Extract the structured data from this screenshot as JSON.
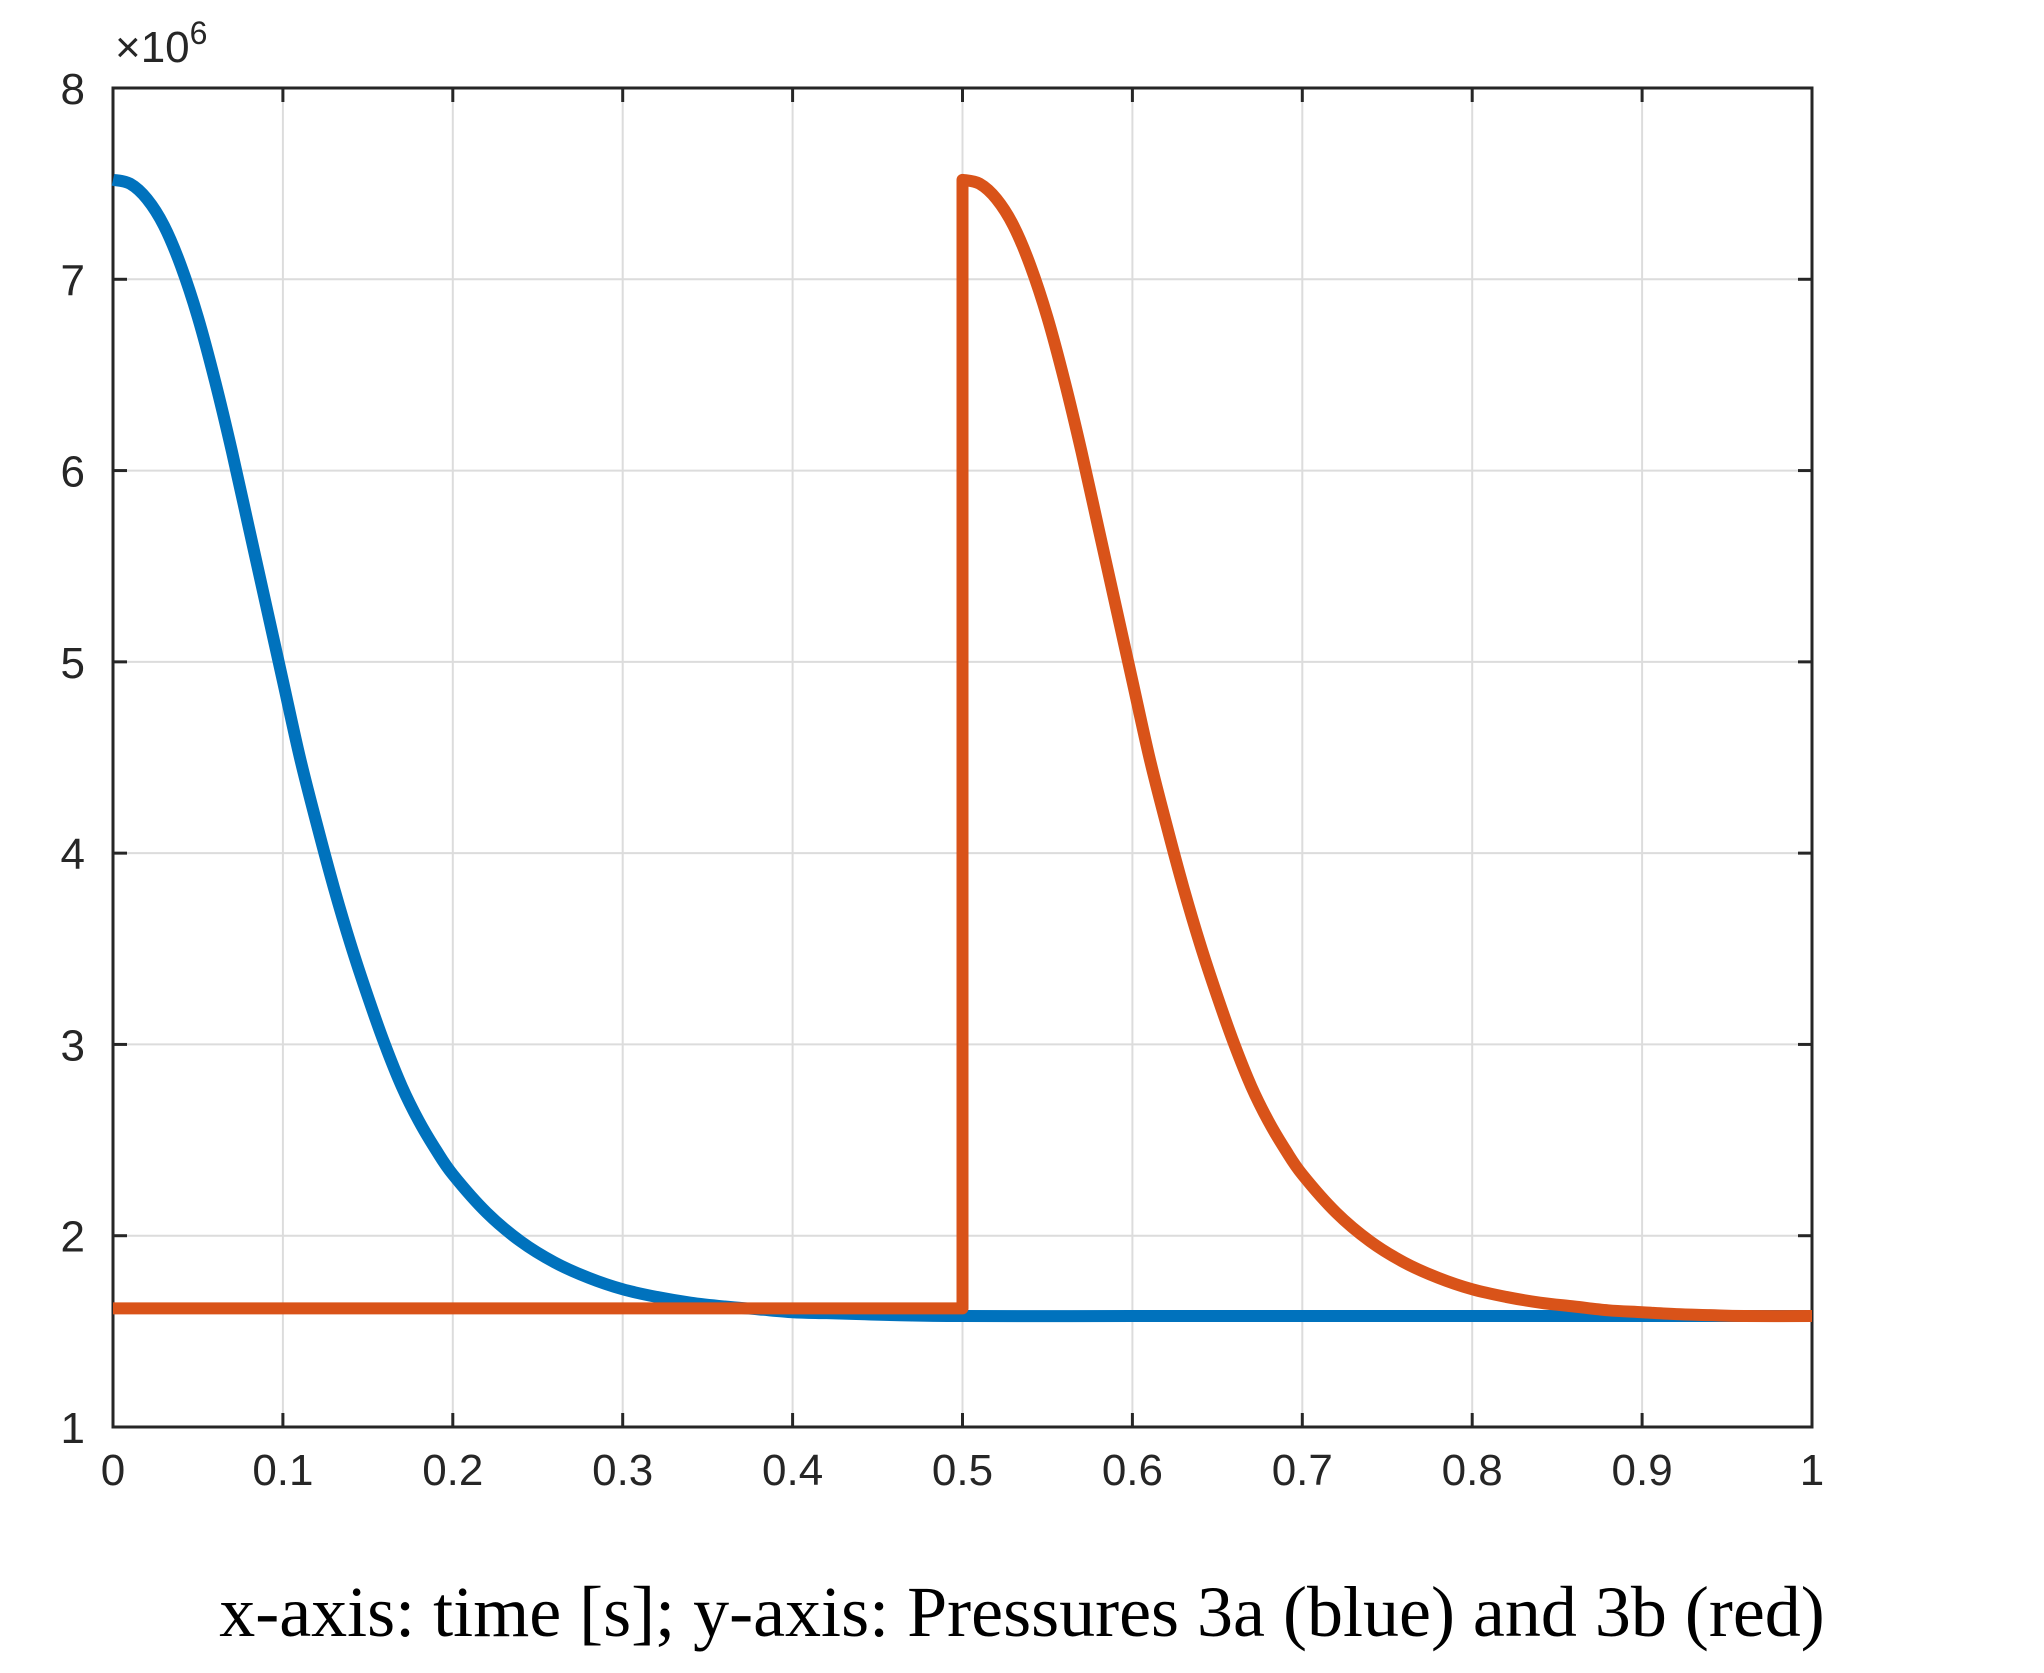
{
  "chart_data": {
    "type": "line",
    "title": "",
    "xlabel": "",
    "ylabel": "",
    "xlim": [
      0,
      1
    ],
    "ylim": [
      1,
      8
    ],
    "y_exponent_label": "×10",
    "y_exponent_power": "6",
    "grid": true,
    "x_ticks": [
      0,
      0.1,
      0.2,
      0.3,
      0.4,
      0.5,
      0.6,
      0.7,
      0.8,
      0.9,
      1
    ],
    "x_tick_labels": [
      "0",
      "0.1",
      "0.2",
      "0.3",
      "0.4",
      "0.5",
      "0.6",
      "0.7",
      "0.8",
      "0.9",
      "1"
    ],
    "y_ticks": [
      1,
      2,
      3,
      4,
      5,
      6,
      7,
      8
    ],
    "y_tick_labels": [
      "1",
      "2",
      "3",
      "4",
      "5",
      "6",
      "7",
      "8"
    ],
    "series": [
      {
        "name": "Pressure 3a",
        "color": "#0072BD",
        "x": [
          0,
          0.01,
          0.02,
          0.03,
          0.04,
          0.05,
          0.06,
          0.07,
          0.08,
          0.09,
          0.1,
          0.11,
          0.12,
          0.13,
          0.14,
          0.15,
          0.16,
          0.17,
          0.18,
          0.19,
          0.2,
          0.22,
          0.24,
          0.26,
          0.28,
          0.3,
          0.32,
          0.34,
          0.36,
          0.38,
          0.4,
          0.42,
          0.44,
          0.46,
          0.5,
          0.6,
          0.7,
          0.8,
          0.9,
          1.0
        ],
        "values": [
          7.52,
          7.5,
          7.42,
          7.28,
          7.07,
          6.8,
          6.47,
          6.1,
          5.7,
          5.3,
          4.9,
          4.5,
          4.15,
          3.82,
          3.52,
          3.25,
          3.0,
          2.78,
          2.6,
          2.45,
          2.32,
          2.12,
          1.97,
          1.86,
          1.78,
          1.72,
          1.68,
          1.65,
          1.63,
          1.615,
          1.6,
          1.595,
          1.59,
          1.585,
          1.58,
          1.58,
          1.58,
          1.58,
          1.58,
          1.58
        ]
      },
      {
        "name": "Pressure 3b",
        "color": "#D95319",
        "x": [
          0,
          0.5,
          0.5,
          0.51,
          0.52,
          0.53,
          0.54,
          0.55,
          0.56,
          0.57,
          0.58,
          0.59,
          0.6,
          0.61,
          0.62,
          0.63,
          0.64,
          0.65,
          0.66,
          0.67,
          0.68,
          0.69,
          0.7,
          0.72,
          0.74,
          0.76,
          0.78,
          0.8,
          0.82,
          0.84,
          0.86,
          0.88,
          0.9,
          0.92,
          0.94,
          0.96,
          1.0
        ],
        "values": [
          1.62,
          1.62,
          7.52,
          7.5,
          7.42,
          7.28,
          7.07,
          6.8,
          6.47,
          6.1,
          5.7,
          5.3,
          4.9,
          4.5,
          4.15,
          3.82,
          3.52,
          3.25,
          3.0,
          2.78,
          2.6,
          2.45,
          2.32,
          2.12,
          1.97,
          1.86,
          1.78,
          1.72,
          1.68,
          1.65,
          1.63,
          1.61,
          1.6,
          1.59,
          1.585,
          1.58,
          1.58
        ]
      }
    ]
  },
  "caption": "x-axis: time [s]; y-axis: Pressures 3a (blue) and 3b (red)"
}
